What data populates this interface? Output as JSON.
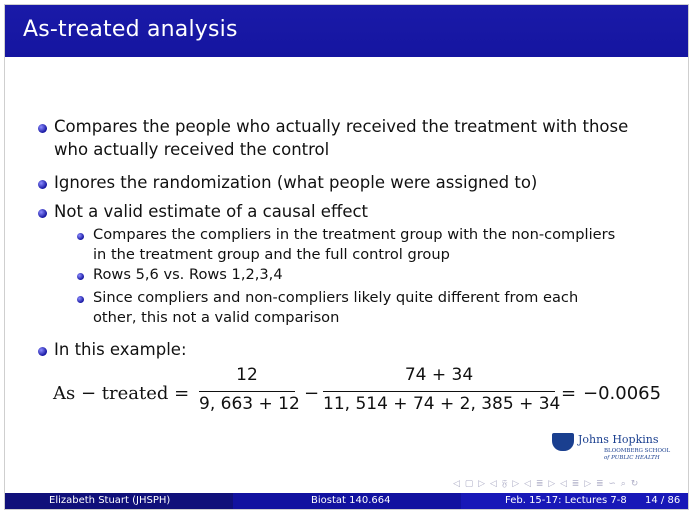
{
  "slide": {
    "title": "As-treated analysis",
    "bullets": [
      {
        "line1": "Compares the people who actually received the treatment with those",
        "line2": "who actually received the control"
      },
      {
        "line1": "Ignores the randomization (what people were assigned to)"
      },
      {
        "line1": "Not a valid estimate of a causal effect",
        "sub": [
          {
            "line1": "Compares the compliers in the treatment group with the non-compliers",
            "line2": "in the treatment group and the full control group"
          },
          {
            "line1": "Rows 5,6 vs. Rows 1,2,3,4"
          },
          {
            "line1": "Since compliers and non-compliers likely quite different from each",
            "line2": "other, this not a valid comparison"
          }
        ]
      },
      {
        "line1": "In this example:"
      }
    ],
    "equation": {
      "lhs": "As − treated =",
      "frac1_num": "12",
      "frac1_den": "9, 663 + 12",
      "minus": "−",
      "frac2_num": "74 + 34",
      "frac2_den": "11, 514 + 74 + 2, 385 + 34",
      "eq": "=",
      "result": "−0.0065"
    }
  },
  "logo": {
    "name": "Johns Hopkins",
    "line1": "BLOOMBERG SCHOOL",
    "line2": "of PUBLIC HEALTH"
  },
  "nav": {
    "symbols": "◁ ▢ ▷ ◁ 𝔉 ▷ ◁ ≣ ▷ ◁ ≣ ▷ ≣ ∽ ⌕ ↻"
  },
  "footer": {
    "author": "Elizabeth Stuart  (JHSPH)",
    "course": "Biostat 140.664",
    "date": "Feb. 15-17: Lectures 7-8",
    "page": "14 / 86"
  },
  "colors": {
    "accent": "#1515a0",
    "footer_dark": "#10107a",
    "logo_blue": "#1a3f8f"
  }
}
